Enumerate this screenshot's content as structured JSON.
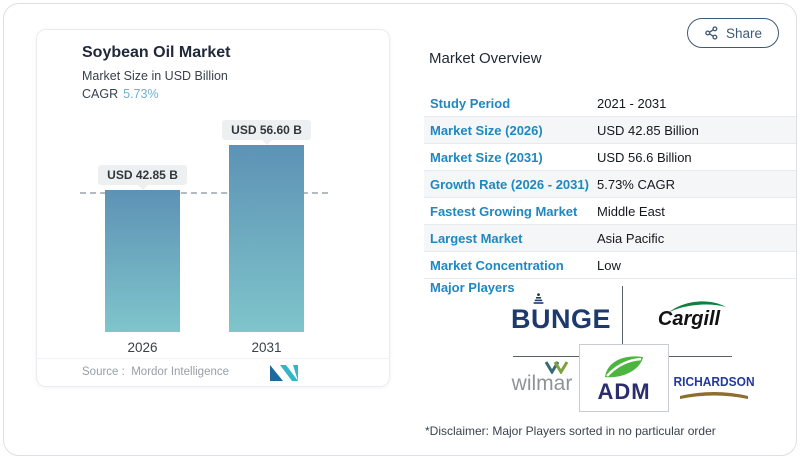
{
  "header": {
    "share_label": "Share"
  },
  "chart_card": {
    "title": "Soybean Oil Market",
    "subtitle": "Market Size in USD Billion",
    "cagr_label": "CAGR",
    "cagr_value": "5.73%",
    "source_label": "Source :",
    "source_value": "Mordor Intelligence"
  },
  "chart_data": {
    "type": "bar",
    "title": "Soybean Oil Market",
    "ylabel": "Market Size in USD Billion",
    "categories": [
      "2026",
      "2031"
    ],
    "values": [
      42.85,
      56.6
    ],
    "value_labels": [
      "USD 42.85 B",
      "USD 56.60 B"
    ],
    "cagr_percent": 5.73,
    "reference_line": 42.85,
    "ylim": [
      0,
      56.6
    ],
    "grid": false,
    "legend": false,
    "bar_gradient_top": "#5d92b5",
    "bar_gradient_bottom": "#7fc5cb"
  },
  "overview": {
    "title": "Market Overview",
    "rows": [
      {
        "label": "Study Period",
        "value": "2021 - 2031"
      },
      {
        "label": "Market Size (2026)",
        "value": "USD 42.85 Billion"
      },
      {
        "label": "Market Size (2031)",
        "value": "USD 56.6 Billion"
      },
      {
        "label": "Growth Rate (2026 - 2031)",
        "value": "5.73% CAGR"
      },
      {
        "label": "Fastest Growing Market",
        "value": "Middle East"
      },
      {
        "label": "Largest Market",
        "value": "Asia Pacific"
      },
      {
        "label": "Market Concentration",
        "value": "Low"
      }
    ],
    "major_players_label": "Major Players",
    "players": [
      {
        "name": "BUNGE"
      },
      {
        "name": "Cargill"
      },
      {
        "name": "wilmar"
      },
      {
        "name": "ADM"
      },
      {
        "name": "RICHARDSON"
      }
    ],
    "disclaimer": "*Disclaimer: Major Players sorted in no particular order"
  },
  "colors": {
    "label_blue": "#1e88c0",
    "cagr_blue": "#74aed3",
    "bar_top": "#5d92b5",
    "bar_bottom": "#7fc5cb",
    "share": "#3e5a77",
    "bunge_navy": "#1c3a6e",
    "cargill_green": "#0c8140",
    "adm_navy": "#2b2e6d",
    "adm_leaf_green": "#4cb53d",
    "richardson_blue": "#2439a0",
    "richardson_gold": "#8d6e2f"
  }
}
